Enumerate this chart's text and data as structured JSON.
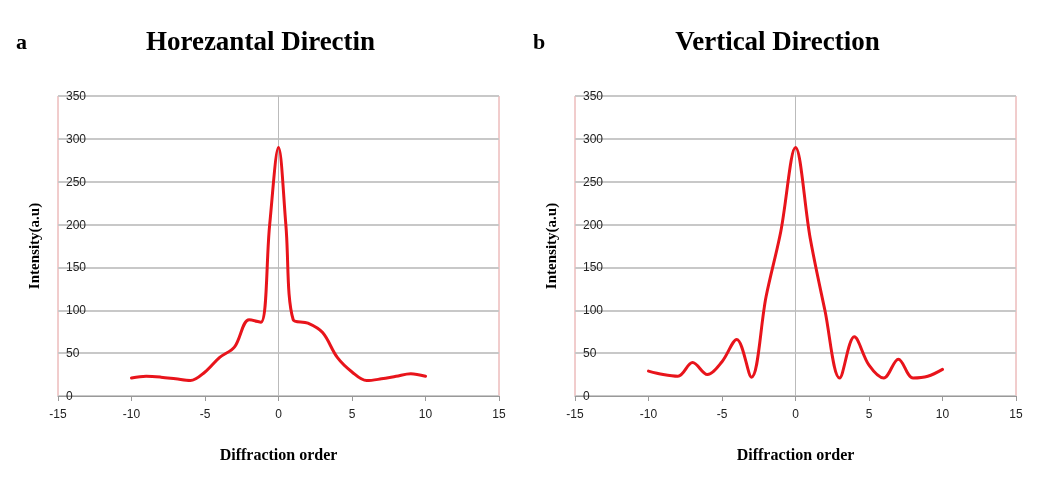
{
  "chart_data": [
    {
      "type": "line",
      "title": "Horezantal Directin",
      "xlabel": "Diffraction order",
      "ylabel": "Intensity(a.u)",
      "annotations": [
        "a"
      ],
      "x": [
        -10,
        -9,
        -8,
        -7,
        -6,
        -5,
        -4,
        -3,
        -2,
        -1.2,
        -0.6,
        0,
        0.5,
        1,
        2,
        3,
        4,
        5,
        6,
        7,
        8,
        9,
        10
      ],
      "series": [
        {
          "color": "#e8141b",
          "values": [
            21,
            23,
            22,
            20,
            18,
            28,
            45,
            57,
            89,
            86,
            200,
            290,
            200,
            89,
            85,
            74,
            45,
            28,
            18,
            20,
            23,
            26,
            23
          ]
        }
      ],
      "xlim": [
        -15,
        15
      ],
      "xticks": [
        -15,
        -10,
        -5,
        0,
        5,
        10,
        15
      ],
      "ylim": [
        0,
        350
      ],
      "yticks": [
        0,
        50,
        100,
        150,
        200,
        250,
        300,
        350
      ],
      "grid": "y",
      "marker": "none",
      "line_style": "solid"
    },
    {
      "type": "line",
      "title": "Vertical Direction",
      "xlabel": "Diffraction order",
      "ylabel": "Intensity(a.u)",
      "annotations": [
        "b"
      ],
      "x": [
        -10,
        -9,
        -8,
        -7,
        -6,
        -5,
        -4,
        -3,
        -2,
        -1,
        0,
        1,
        2,
        3,
        4,
        5,
        6,
        7,
        8,
        9,
        10
      ],
      "series": [
        {
          "color": "#e8141b",
          "values": [
            29,
            25,
            23,
            39,
            25,
            40,
            66,
            22,
            116,
            192,
            290,
            184,
            100,
            21,
            69,
            36,
            21,
            43,
            21,
            23,
            31
          ]
        }
      ],
      "xlim": [
        -15,
        15
      ],
      "xticks": [
        -15,
        -10,
        -5,
        0,
        5,
        10,
        15
      ],
      "ylim": [
        0,
        350
      ],
      "yticks": [
        0,
        50,
        100,
        150,
        200,
        250,
        300,
        350
      ],
      "grid": "y",
      "marker": "none",
      "line_style": "solid"
    }
  ]
}
